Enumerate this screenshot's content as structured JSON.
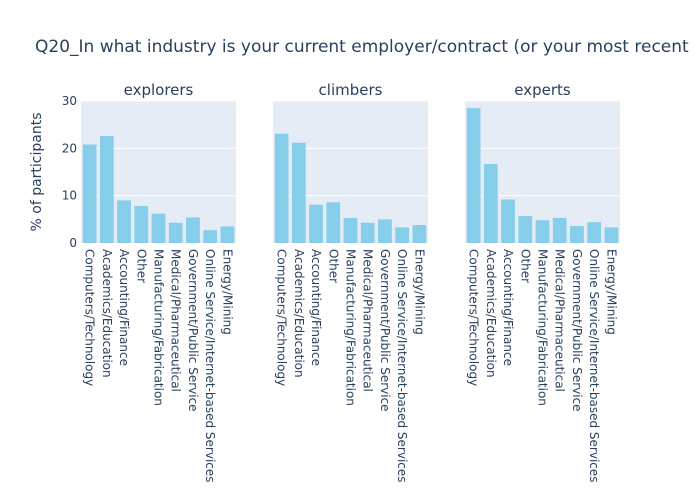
{
  "chart_data": {
    "type": "bar",
    "title": "Q20_In what industry is your current employer/contract (or your most recent",
    "ylabel": "% of participants",
    "ylim": [
      0,
      30
    ],
    "yticks": [
      0,
      10,
      20,
      30
    ],
    "grid": true,
    "colors": {
      "bar": "#87ceeb",
      "plot_bg": "#e5ecf6",
      "grid": "#ffffff",
      "text": "#2a3f5f"
    },
    "categories": [
      "Computers/Technology",
      "Academics/Education",
      "Accounting/Finance",
      "Other",
      "Manufacturing/Fabrication",
      "Medical/Pharmaceutical",
      "Government/Public Service",
      "Online Service/Internet-based Services",
      "Energy/Mining"
    ],
    "panels": [
      {
        "name": "explorers",
        "values": [
          20.8,
          22.6,
          9.0,
          7.8,
          6.2,
          4.3,
          5.4,
          2.7,
          3.5
        ]
      },
      {
        "name": "climbers",
        "values": [
          23.1,
          21.2,
          8.1,
          8.6,
          5.3,
          4.3,
          5.0,
          3.3,
          3.8
        ]
      },
      {
        "name": "experts",
        "values": [
          28.5,
          16.7,
          9.2,
          5.7,
          4.8,
          5.3,
          3.6,
          4.4,
          3.3
        ]
      }
    ]
  }
}
